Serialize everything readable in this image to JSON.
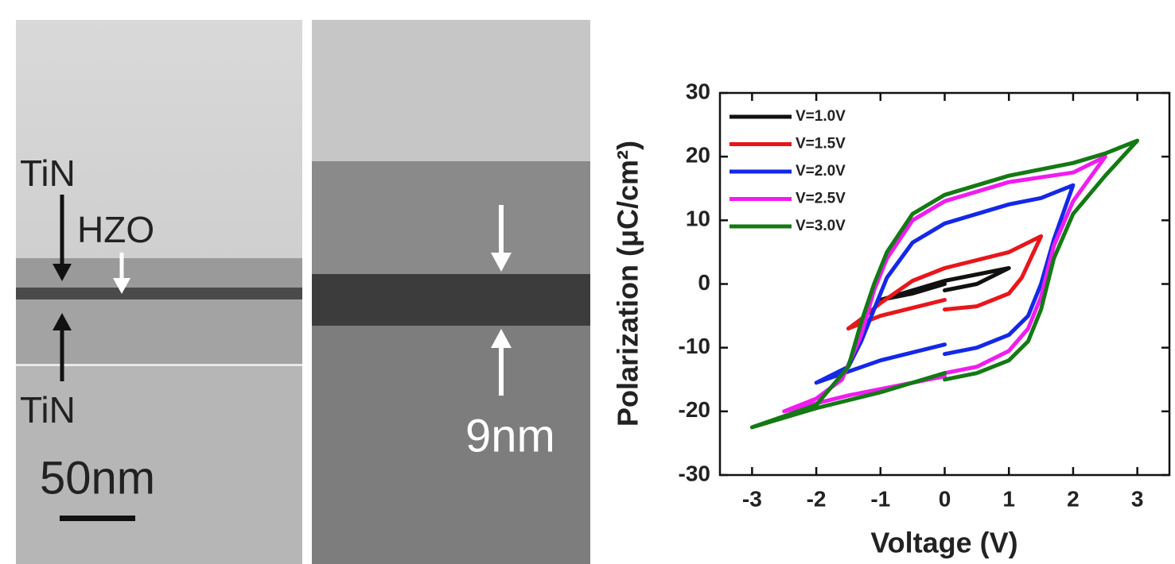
{
  "tem_images": [
    {
      "labels": [
        "TiN",
        "HZO",
        "TiN",
        "50nm"
      ]
    },
    {
      "labels": [
        "9nm"
      ]
    }
  ],
  "chart_data": {
    "type": "line",
    "x_label": "Voltage (V)",
    "y_label": "Polarization (μC/cm²)",
    "xlim": [
      -3.5,
      3.5
    ],
    "ylim": [
      -30,
      30
    ],
    "xticks": [
      -3,
      -2,
      -1,
      0,
      1,
      2,
      3
    ],
    "yticks": [
      -30,
      -20,
      -10,
      0,
      10,
      20,
      30
    ],
    "legend": "upper left",
    "series": [
      {
        "name": "V=1.0V",
        "color": "#111111",
        "x": [
          0,
          0.5,
          1,
          0.5,
          0,
          -0.5,
          -1,
          -0.5,
          0
        ],
        "values": [
          -1,
          0,
          2.5,
          1.5,
          0.5,
          -1,
          -2.5,
          -1.5,
          0
        ]
      },
      {
        "name": "V=1.5V",
        "color": "#e8161b",
        "x": [
          0,
          0.5,
          1,
          1.2,
          1.5,
          1,
          0,
          -0.5,
          -1,
          -1.3,
          -1.5,
          -1,
          0
        ],
        "values": [
          -4,
          -3.5,
          -1.5,
          1,
          7.5,
          5,
          2.5,
          0.5,
          -3,
          -5.5,
          -7,
          -5,
          -2.5
        ]
      },
      {
        "name": "V=2.0V",
        "color": "#1428e8",
        "x": [
          0,
          0.5,
          1,
          1.3,
          1.5,
          1.7,
          2,
          1.5,
          1,
          0,
          -0.5,
          -0.9,
          -1.1,
          -1.3,
          -1.5,
          -2,
          -1,
          0
        ],
        "values": [
          -11,
          -10,
          -8,
          -5,
          0,
          7,
          15.5,
          13.5,
          12.5,
          9.5,
          6.5,
          1,
          -4,
          -9,
          -13,
          -15.5,
          -12,
          -9.5
        ]
      },
      {
        "name": "V=2.5V",
        "color": "#f01cf0",
        "x": [
          0,
          0.5,
          1,
          1.3,
          1.5,
          1.7,
          2,
          2.5,
          2,
          1,
          0,
          -0.5,
          -0.9,
          -1.1,
          -1.3,
          -1.6,
          -2,
          -2.5,
          -1.5,
          -0.5,
          0
        ],
        "values": [
          -14,
          -13,
          -10.5,
          -7,
          -2,
          6,
          13,
          20,
          17.5,
          16,
          13,
          10,
          4,
          -1,
          -8,
          -15,
          -18,
          -20,
          -17.5,
          -15.5,
          -14.5
        ]
      },
      {
        "name": "V=3.0V",
        "color": "#137a13",
        "x": [
          0,
          0.5,
          1,
          1.3,
          1.5,
          1.7,
          2,
          2.5,
          3,
          2.5,
          2,
          1,
          0,
          -0.5,
          -0.9,
          -1.1,
          -1.3,
          -1.5,
          -2,
          -3,
          -2,
          -1,
          0
        ],
        "values": [
          -15,
          -14,
          -12,
          -9,
          -4,
          4,
          11,
          17,
          22.5,
          20.5,
          19,
          17,
          14,
          11,
          5,
          0,
          -6,
          -13,
          -19,
          -22.5,
          -19.5,
          -17,
          -14
        ]
      }
    ]
  }
}
